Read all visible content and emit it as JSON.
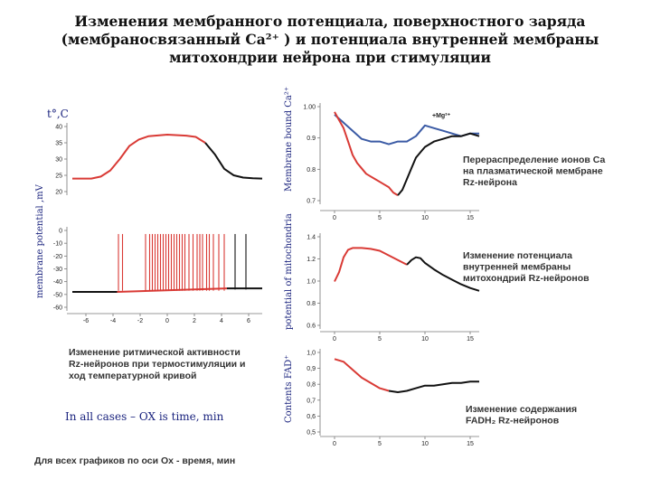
{
  "title": {
    "line1": "Изменения мембранного потенциала,  поверхностного заряда",
    "line2": "(мембраносвязанный Ca²⁺ ) и  потенциала внутренней мембраны",
    "line3": "митохондрии нейрона при стимуляции"
  },
  "labels": {
    "temp_unit": "t°,C",
    "membrane_potential": "membrane potential ,mV",
    "membrane_ca": "Membrane bound Ca²⁺",
    "mito_potential": "potential of mitochondria",
    "fad": "Contents FAD⁺",
    "note_en": "In all cases – OX is time, min",
    "note_ru": "Для всех графиков по оси Ox - время, мин"
  },
  "colors": {
    "red": "#d93a35",
    "black": "#111111",
    "blue": "#3b5ba5",
    "label": "#1a237e"
  },
  "chart_data": [
    {
      "id": "temperature",
      "type": "line",
      "ylabel": "t°,C",
      "yticks": [
        "40",
        "35",
        "30",
        "25",
        "20"
      ],
      "ylim": [
        20,
        40
      ],
      "xlim": [
        0,
        10
      ],
      "series": [
        {
          "color": "#d93a35",
          "x": [
            0,
            1.0,
            1.5,
            2.0,
            2.5,
            3.0,
            3.5,
            4.0,
            5.0,
            6.0,
            6.5,
            7.0
          ],
          "y": [
            24,
            24,
            24.6,
            26.5,
            30,
            34,
            36,
            37,
            37.5,
            37.2,
            36.8,
            35
          ]
        },
        {
          "color": "#111111",
          "x": [
            7.0,
            7.5,
            8.0,
            8.5,
            9.0,
            9.5,
            10
          ],
          "y": [
            35,
            31.5,
            27,
            25,
            24.3,
            24.1,
            24
          ]
        }
      ]
    },
    {
      "id": "membrane_potential",
      "type": "line",
      "ylabel": "membrane potential ,mV",
      "yticks": [
        "0",
        "-10",
        "-20",
        "-30",
        "-40",
        "-50",
        "-60"
      ],
      "xticks": [
        "-6",
        "-4",
        "-2",
        "0",
        "2",
        "4",
        "6"
      ],
      "ylim": [
        -65,
        0
      ],
      "xlim": [
        -7,
        7
      ],
      "series": [
        {
          "color": "#111111",
          "x": [
            -7,
            -3.7
          ],
          "y": [
            -52,
            -52
          ]
        },
        {
          "color": "#d93a35",
          "x": [
            -3.7,
            4.4
          ],
          "y": [
            -52,
            -49
          ]
        },
        {
          "color": "#111111",
          "x": [
            4.4,
            7
          ],
          "y": [
            -49,
            -49
          ]
        }
      ],
      "spikes": [
        -3.6,
        -3.3,
        -1.6,
        -1.3,
        -1.1,
        -0.9,
        -0.7,
        -0.5,
        -0.3,
        -0.1,
        0.1,
        0.3,
        0.5,
        0.7,
        0.9,
        1.1,
        1.3,
        1.6,
        1.9,
        2.2,
        2.4,
        2.6,
        2.9,
        3.1,
        3.4,
        3.8,
        4.2,
        5.0,
        5.8
      ],
      "spike_peak": -3
    },
    {
      "id": "ca_bound",
      "type": "line",
      "ylabel": "Membrane bound Ca²⁺",
      "yticks": [
        "1.00",
        "0.9",
        "0.8",
        "0.7"
      ],
      "xticks": [
        "0",
        "5",
        "10",
        "15"
      ],
      "ylim": [
        0.68,
        1.03
      ],
      "xlim": [
        -1,
        16
      ],
      "annotation": "+Mg²⁺",
      "series": [
        {
          "name": "+Mg²⁺",
          "color": "#3b5ba5",
          "x": [
            0,
            1,
            2,
            3,
            4,
            5,
            6,
            7,
            8,
            9,
            10,
            11,
            12,
            13,
            14,
            15,
            16
          ],
          "y": [
            1.0,
            0.97,
            0.94,
            0.91,
            0.9,
            0.9,
            0.89,
            0.9,
            0.9,
            0.92,
            0.96,
            0.95,
            0.94,
            0.93,
            0.92,
            0.93,
            0.93
          ]
        },
        {
          "color": "#d93a35",
          "x": [
            0,
            0.5,
            1,
            1.5,
            2,
            2.5,
            3,
            3.5,
            4,
            4.5,
            5,
            5.5,
            6,
            6.5,
            7
          ],
          "y": [
            1.01,
            0.98,
            0.95,
            0.9,
            0.85,
            0.82,
            0.8,
            0.78,
            0.77,
            0.76,
            0.75,
            0.74,
            0.73,
            0.71,
            0.7
          ]
        },
        {
          "color": "#111111",
          "x": [
            7,
            7.5,
            8,
            8.5,
            9,
            9.5,
            10,
            11,
            12,
            13,
            14,
            15,
            16
          ],
          "y": [
            0.7,
            0.72,
            0.76,
            0.8,
            0.84,
            0.86,
            0.88,
            0.9,
            0.91,
            0.92,
            0.92,
            0.93,
            0.92
          ]
        }
      ],
      "caption": [
        "Перераспределение ионов Са",
        "на плазматической мембране",
        "Rz-нейрона"
      ]
    },
    {
      "id": "mito_potential",
      "type": "line",
      "ylabel": "potential of mitochondria",
      "yticks": [
        "1.4",
        "1.2",
        "1.0",
        "0.8",
        "0.6"
      ],
      "xticks": [
        "0",
        "5",
        "10",
        "15"
      ],
      "ylim": [
        0.55,
        1.5
      ],
      "xlim": [
        -1,
        16
      ],
      "series": [
        {
          "color": "#d93a35",
          "x": [
            0,
            0.5,
            1,
            1.5,
            2,
            3,
            4,
            5,
            6,
            7,
            8
          ],
          "y": [
            1.02,
            1.12,
            1.28,
            1.36,
            1.38,
            1.38,
            1.37,
            1.35,
            1.3,
            1.25,
            1.2
          ]
        },
        {
          "color": "#111111",
          "x": [
            8,
            8.5,
            9,
            9.5,
            10,
            11,
            12,
            13,
            14,
            15,
            16
          ],
          "y": [
            1.2,
            1.25,
            1.28,
            1.27,
            1.22,
            1.15,
            1.09,
            1.04,
            0.99,
            0.95,
            0.92
          ]
        }
      ],
      "caption": [
        "Изменение потенциала",
        "внутренней мембраны",
        "митохондрий Rz-нейронов"
      ]
    },
    {
      "id": "fad",
      "type": "line",
      "ylabel": "Contents FAD⁺",
      "yticks": [
        "1,0",
        "0,9",
        "0,8",
        "0,7",
        "0,6",
        "0,5"
      ],
      "xticks": [
        "0",
        "5",
        "10",
        "15"
      ],
      "ylim": [
        0.45,
        1.05
      ],
      "xlim": [
        -1,
        16
      ],
      "series": [
        {
          "color": "#d93a35",
          "x": [
            0,
            1,
            2,
            3,
            4,
            5,
            6
          ],
          "y": [
            1.0,
            0.98,
            0.92,
            0.86,
            0.82,
            0.78,
            0.76
          ]
        },
        {
          "color": "#111111",
          "x": [
            6,
            7,
            8,
            9,
            10,
            11,
            12,
            13,
            14,
            15,
            16
          ],
          "y": [
            0.76,
            0.75,
            0.76,
            0.78,
            0.8,
            0.8,
            0.81,
            0.82,
            0.82,
            0.83,
            0.83
          ]
        }
      ],
      "caption": [
        "Изменение содержания",
        "FADH₂ Rz-нейронов"
      ]
    }
  ],
  "left_caption": [
    "Изменение ритмической активности",
    "Rz-нейронов при термостимуляции и",
    "ход температурной кривой"
  ]
}
